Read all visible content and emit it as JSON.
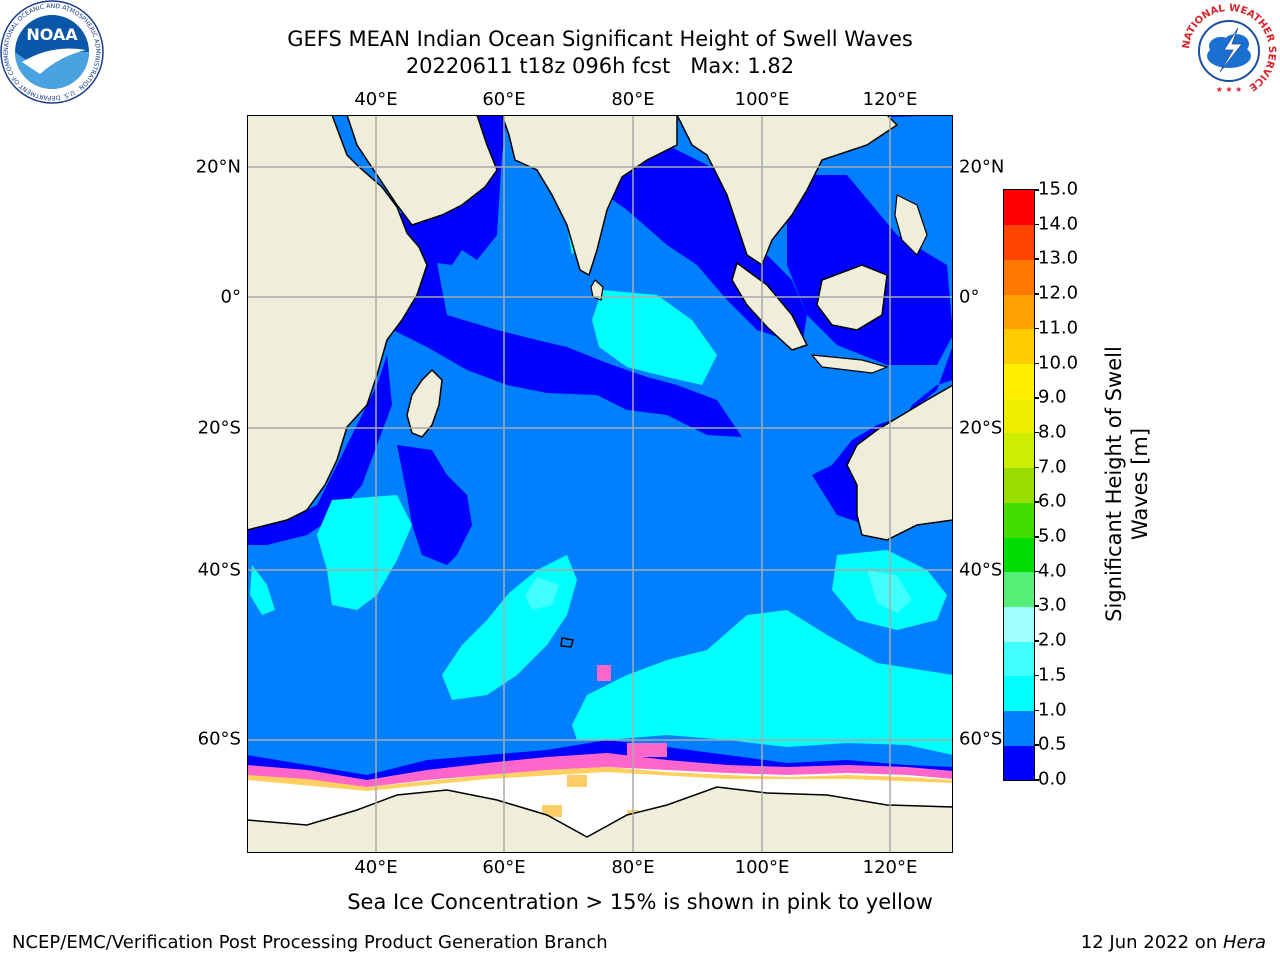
{
  "title": {
    "line1": "GEFS MEAN Indian Ocean Significant Height of Swell Waves",
    "line2": "20220611 t18z 096h fcst   Max: 1.82"
  },
  "map": {
    "lon_labels": [
      "40°E",
      "60°E",
      "80°E",
      "100°E",
      "120°E"
    ],
    "lat_labels": [
      "20°N",
      "0°",
      "20°S",
      "40°S",
      "60°S"
    ],
    "lon_range": [
      20,
      130
    ],
    "colors": {
      "land": "#eeeedb",
      "sea_ice": "#ffffff",
      "ocean_shallow": "#0000ff",
      "ocean_mid": "#0080ff",
      "ocean_high": "#00ffff",
      "ice_edge_pink": "#ff66cc",
      "ice_edge_yellow": "#ffd060"
    }
  },
  "colorbar": {
    "label_line1": "Significant Height of Swell",
    "label_line2": "Waves [m]",
    "ticks": [
      "0.0",
      "0.5",
      "1.0",
      "1.5",
      "2.0",
      "3.0",
      "4.0",
      "5.0",
      "6.0",
      "7.0",
      "8.0",
      "9.0",
      "10.0",
      "11.0",
      "12.0",
      "13.0",
      "14.0",
      "15.0"
    ],
    "colors": [
      "#0000ff",
      "#0080ff",
      "#00ffff",
      "#40ffff",
      "#a0ffff",
      "#55ee77",
      "#00dd00",
      "#44dd00",
      "#99dd00",
      "#ccee00",
      "#eeee00",
      "#ffee00",
      "#ffcc00",
      "#ffa000",
      "#ff7700",
      "#ff4400",
      "#ff0000"
    ]
  },
  "caption": "Sea Ice Concentration > 15% is shown in pink to yellow",
  "footer": {
    "left": "NCEP/EMC/Verification Post Processing Product Generation Branch",
    "date": "12 Jun 2022 on ",
    "host": "Hera"
  },
  "logos": {
    "noaa_text": "NOAA",
    "noaa_ring": "NATIONAL OCEANIC AND ATMOSPHERIC ADMINISTRATION · U.S. DEPARTMENT OF COMMERCE",
    "nws_ring": "NATIONAL WEATHER SERVICE"
  }
}
